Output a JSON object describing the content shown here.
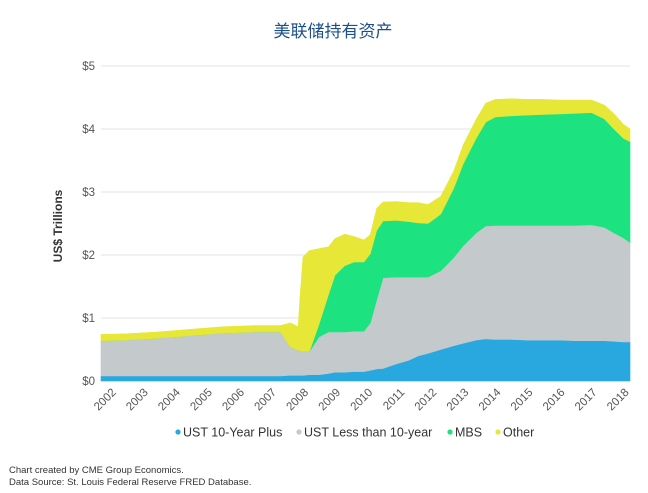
{
  "chart_data": {
    "type": "area",
    "stacked": true,
    "title": "美联储持有资产",
    "xlabel": "",
    "ylabel": "US$ Trillions",
    "ylim": [
      0,
      5
    ],
    "xlim": [
      2001.7,
      2018.2
    ],
    "y_ticks": [
      0,
      1,
      2,
      3,
      4,
      5
    ],
    "y_tick_labels": [
      "$0",
      "$1",
      "$2",
      "$3",
      "$4",
      "$5"
    ],
    "x_ticks": [
      2002,
      2003,
      2004,
      2005,
      2006,
      2007,
      2008,
      2009,
      2010,
      2011,
      2012,
      2013,
      2014,
      2015,
      2016,
      2017,
      2018
    ],
    "x_tick_labels": [
      "2002",
      "2003",
      "2004",
      "2005",
      "2006",
      "2007",
      "2008",
      "2009",
      "2010",
      "2011",
      "2012",
      "2013",
      "2014",
      "2015",
      "2016",
      "2017",
      "2018"
    ],
    "grid": true,
    "legend_position": "bottom",
    "x": [
      2001.7,
      2002.5,
      2003.5,
      2004.5,
      2005.5,
      2006.5,
      2007.3,
      2007.6,
      2007.85,
      2007.9,
      2008.0,
      2008.2,
      2008.5,
      2008.8,
      2009.0,
      2009.3,
      2009.6,
      2009.9,
      2010.1,
      2010.3,
      2010.5,
      2010.9,
      2011.3,
      2011.6,
      2011.9,
      2012.3,
      2012.7,
      2013.0,
      2013.4,
      2013.7,
      2014.0,
      2014.5,
      2015.0,
      2015.5,
      2016.0,
      2016.5,
      2017.0,
      2017.4,
      2017.7,
      2018.0,
      2018.2
    ],
    "series": [
      {
        "name": "UST 10-Year Plus",
        "color": "#29a8e0",
        "values": [
          0.08,
          0.08,
          0.08,
          0.08,
          0.08,
          0.08,
          0.08,
          0.09,
          0.09,
          0.09,
          0.09,
          0.1,
          0.1,
          0.12,
          0.14,
          0.14,
          0.15,
          0.15,
          0.17,
          0.19,
          0.2,
          0.27,
          0.33,
          0.4,
          0.44,
          0.5,
          0.56,
          0.6,
          0.65,
          0.67,
          0.66,
          0.66,
          0.65,
          0.65,
          0.65,
          0.64,
          0.64,
          0.64,
          0.63,
          0.62,
          0.62
        ]
      },
      {
        "name": "UST Less than 10-year",
        "color": "#c4c9cc",
        "values": [
          0.56,
          0.57,
          0.6,
          0.64,
          0.68,
          0.7,
          0.7,
          0.45,
          0.4,
          0.39,
          0.38,
          0.37,
          0.6,
          0.66,
          0.64,
          0.64,
          0.64,
          0.64,
          0.75,
          1.1,
          1.44,
          1.38,
          1.32,
          1.25,
          1.21,
          1.25,
          1.4,
          1.55,
          1.7,
          1.79,
          1.81,
          1.81,
          1.82,
          1.82,
          1.82,
          1.83,
          1.84,
          1.8,
          1.72,
          1.65,
          1.58
        ]
      },
      {
        "name": "MBS",
        "color": "#1de280",
        "values": [
          0,
          0,
          0,
          0,
          0,
          0,
          0,
          0,
          0,
          0,
          0,
          0,
          0.2,
          0.6,
          0.9,
          1.05,
          1.1,
          1.1,
          1.1,
          1.1,
          0.9,
          0.9,
          0.88,
          0.86,
          0.85,
          0.9,
          1.1,
          1.3,
          1.5,
          1.65,
          1.72,
          1.74,
          1.75,
          1.76,
          1.77,
          1.78,
          1.78,
          1.72,
          1.65,
          1.58,
          1.6
        ]
      },
      {
        "name": "Other",
        "color": "#e6e736",
        "values": [
          0.1,
          0.1,
          0.1,
          0.1,
          0.1,
          0.1,
          0.1,
          0.38,
          0.37,
          0.8,
          1.5,
          1.6,
          1.2,
          0.75,
          0.58,
          0.5,
          0.4,
          0.35,
          0.3,
          0.35,
          0.3,
          0.3,
          0.3,
          0.32,
          0.3,
          0.28,
          0.27,
          0.3,
          0.3,
          0.3,
          0.28,
          0.27,
          0.25,
          0.24,
          0.22,
          0.21,
          0.2,
          0.22,
          0.24,
          0.22,
          0.2
        ]
      }
    ]
  },
  "footer": {
    "credit": "Chart created by CME Group Economics.",
    "source": "Data Source: St. Louis Federal Reserve FRED Database."
  }
}
